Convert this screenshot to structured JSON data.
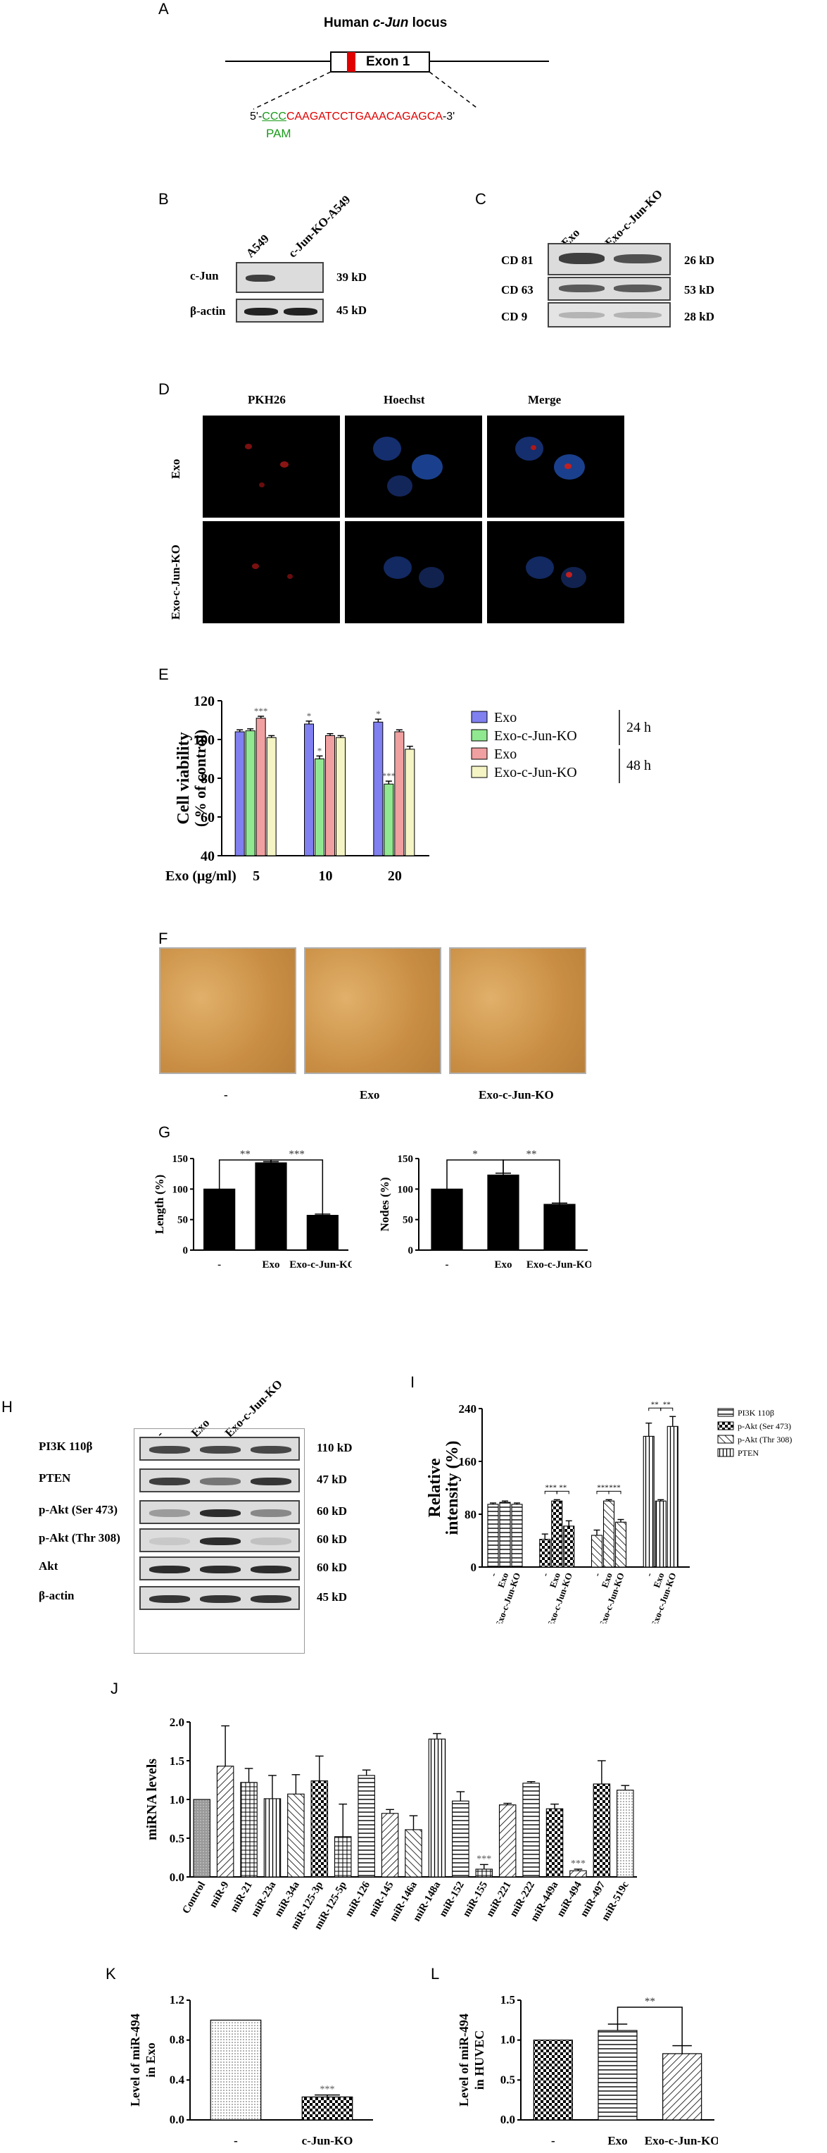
{
  "panelA": {
    "label": "A",
    "locus_title_pre": "Human ",
    "locus_gene": "c-Jun",
    "locus_title_post": " locus",
    "exon": "Exon 1",
    "seq_start": "5'-",
    "seq_pam": "CCC",
    "seq_body": "CAAGATCCTGAAACAGAGCA",
    "seq_end": "-3'",
    "pam_label": "PAM"
  },
  "panelB": {
    "label": "B",
    "lanes": [
      "A549",
      "c-Jun-KO-A549"
    ],
    "rows": [
      {
        "name": "c-Jun",
        "kd": "39 kD"
      },
      {
        "name": "β-actin",
        "kd": "45 kD"
      }
    ]
  },
  "panelC": {
    "label": "C",
    "lanes": [
      "Exo",
      "Exo-c-Jun-KO"
    ],
    "rows": [
      {
        "name": "CD 81",
        "kd": "26 kD"
      },
      {
        "name": "CD 63",
        "kd": "53 kD"
      },
      {
        "name": "CD 9",
        "kd": "28 kD"
      }
    ]
  },
  "panelD": {
    "label": "D",
    "cols": [
      "PKH26",
      "Hoechst",
      "Merge"
    ],
    "rows": [
      "Exo",
      "Exo-c-Jun-KO"
    ]
  },
  "panelF": {
    "label": "F",
    "captions": [
      "-",
      "Exo",
      "Exo-c-Jun-KO"
    ]
  },
  "panelH": {
    "label": "H",
    "lanes": [
      "-",
      "Exo",
      "Exo-c-Jun-KO"
    ],
    "rows": [
      {
        "name": "PI3K 110β",
        "kd": "110 kD"
      },
      {
        "name": "PTEN",
        "kd": "47 kD"
      },
      {
        "name": "p-Akt (Ser 473)",
        "kd": "60 kD"
      },
      {
        "name": "p-Akt (Thr 308)",
        "kd": "60 kD"
      },
      {
        "name": "Akt",
        "kd": "60 kD"
      },
      {
        "name": "β-actin",
        "kd": "45 kD"
      }
    ]
  },
  "chart_data": [
    {
      "panel": "E",
      "type": "bar",
      "xlabel": "Exo (μg/ml)",
      "ylabel": "Cell viability",
      "ylabel2": "( % of control)",
      "categories": [
        "5",
        "10",
        "20"
      ],
      "ylim": [
        40,
        120
      ],
      "yticks": [
        40,
        60,
        80,
        100,
        120
      ],
      "series": [
        {
          "name": "Exo",
          "color": "#8080f0",
          "values": [
            104,
            108,
            109
          ]
        },
        {
          "name": "Exo-c-Jun-KO",
          "color": "#90e890",
          "values": [
            104.5,
            90,
            77
          ]
        },
        {
          "name": "Exo",
          "color": "#f0a0a0",
          "values": [
            111,
            102,
            104
          ]
        },
        {
          "name": "Exo-c-Jun-KO",
          "color": "#f4f4c4",
          "values": [
            101,
            101,
            95
          ]
        }
      ],
      "errors": [
        [
          1,
          1.5,
          1.5
        ],
        [
          1,
          1.5,
          1.5
        ],
        [
          1,
          1,
          1
        ],
        [
          1,
          1,
          1.5
        ]
      ],
      "stars": [
        [
          null,
          "*",
          "*"
        ],
        [
          null,
          "*",
          "***"
        ],
        [
          "***",
          null,
          null
        ],
        [
          null,
          null,
          null
        ]
      ],
      "group_labels": [
        "24 h",
        "48 h"
      ]
    },
    {
      "panel": "G-left",
      "type": "bar",
      "ylabel": "Length (%)",
      "categories": [
        "-",
        "Exo",
        "Exo-c-Jun-KO"
      ],
      "values": [
        100,
        143,
        57
      ],
      "errors": [
        0,
        2,
        2
      ],
      "ylim": [
        0,
        150
      ],
      "yticks": [
        0,
        50,
        100,
        150
      ],
      "brackets": [
        {
          "from": 0,
          "to": 1,
          "label": "**"
        },
        {
          "from": 1,
          "to": 2,
          "label": "***"
        }
      ]
    },
    {
      "panel": "G-right",
      "type": "bar",
      "ylabel": "Nodes (%)",
      "categories": [
        "-",
        "Exo",
        "Exo-c-Jun-KO"
      ],
      "values": [
        100,
        123,
        75
      ],
      "errors": [
        0,
        3,
        2
      ],
      "ylim": [
        0,
        150
      ],
      "yticks": [
        0,
        50,
        100,
        150
      ],
      "brackets": [
        {
          "from": 0,
          "to": 1,
          "label": "*"
        },
        {
          "from": 1,
          "to": 2,
          "label": "**"
        }
      ]
    },
    {
      "panel": "I",
      "type": "bar",
      "ylabel": "Relative",
      "ylabel2": "intensity (%)",
      "ylim": [
        0,
        240
      ],
      "yticks": [
        0,
        80,
        160,
        240
      ],
      "groups": [
        "PI3K 110β",
        "p-Akt (Ser 473)",
        "p-Akt (Thr 308)",
        "PTEN"
      ],
      "categories": [
        "-",
        "Exo",
        "Exo-c-Jun-KO"
      ],
      "values": [
        [
          95,
          98,
          95
        ],
        [
          42,
          100,
          62
        ],
        [
          48,
          100,
          68
        ],
        [
          198,
          100,
          213
        ]
      ],
      "errors": [
        [
          2,
          2,
          2
        ],
        [
          8,
          2,
          8
        ],
        [
          8,
          2,
          4
        ],
        [
          20,
          2,
          15
        ]
      ],
      "stars": [
        [
          "",
          ""
        ],
        [
          "***",
          "**"
        ],
        [
          "***",
          "***"
        ],
        [
          "**",
          "**"
        ]
      ],
      "legend": [
        "PI3K 110β",
        "p-Akt (Ser 473)",
        "p-Akt (Thr 308)",
        "PTEN"
      ]
    },
    {
      "panel": "J",
      "type": "bar",
      "ylabel": "miRNA levels",
      "ylim": [
        0,
        2.0
      ],
      "yticks": [
        "0.0",
        "0.5",
        "1.0",
        "1.5",
        "2.0"
      ],
      "categories": [
        "Control",
        "miR-9",
        "miR-21",
        "miR-23a",
        "miR-34a",
        "miR-125-3p",
        "miR-125-5p",
        "miR-126",
        "miR-145",
        "miR-146a",
        "miR-148a",
        "miR-152",
        "miR-155",
        "miR-221",
        "miR-222",
        "miR-449a",
        "miR-494",
        "miR-497",
        "miR-519c"
      ],
      "values": [
        1.0,
        1.43,
        1.22,
        1.01,
        1.07,
        1.24,
        0.52,
        1.31,
        0.82,
        0.61,
        1.78,
        0.98,
        0.1,
        0.93,
        1.21,
        0.88,
        0.08,
        1.2,
        1.12
      ],
      "errors": [
        0,
        0.52,
        0.18,
        0.3,
        0.25,
        0.32,
        0.42,
        0.07,
        0.05,
        0.18,
        0.07,
        0.12,
        0.06,
        0.02,
        0.02,
        0.06,
        0.02,
        0.3,
        0.06
      ],
      "stars": [
        "",
        "",
        "",
        "",
        "",
        "",
        "",
        "",
        "",
        "",
        "",
        "",
        "***",
        "",
        "",
        "",
        "***",
        "",
        ""
      ]
    },
    {
      "panel": "K",
      "type": "bar",
      "ylabel": "Level of miR-494",
      "ylabel2": "in Exo",
      "categories": [
        "-",
        "c-Jun-KO"
      ],
      "values": [
        1.0,
        0.23
      ],
      "errors": [
        0,
        0.02
      ],
      "ylim": [
        0,
        1.2
      ],
      "yticks": [
        "0.0",
        "0.4",
        "0.8",
        "1.2"
      ],
      "stars": [
        "",
        "***"
      ]
    },
    {
      "panel": "L",
      "type": "bar",
      "ylabel": "Level of miR-494",
      "ylabel2": "in HUVEC",
      "categories": [
        "-",
        "Exo",
        "Exo-c-Jun-KO"
      ],
      "values": [
        1.0,
        1.12,
        0.83
      ],
      "errors": [
        0,
        0.08,
        0.1
      ],
      "ylim": [
        0,
        1.5
      ],
      "yticks": [
        "0.0",
        "0.5",
        "1.0",
        "1.5"
      ],
      "brackets": [
        {
          "from": 1,
          "to": 2,
          "label": "**"
        }
      ]
    }
  ],
  "panel_letters": {
    "E": "E",
    "G": "G",
    "I": "I",
    "J": "J",
    "K": "K",
    "L": "L"
  }
}
